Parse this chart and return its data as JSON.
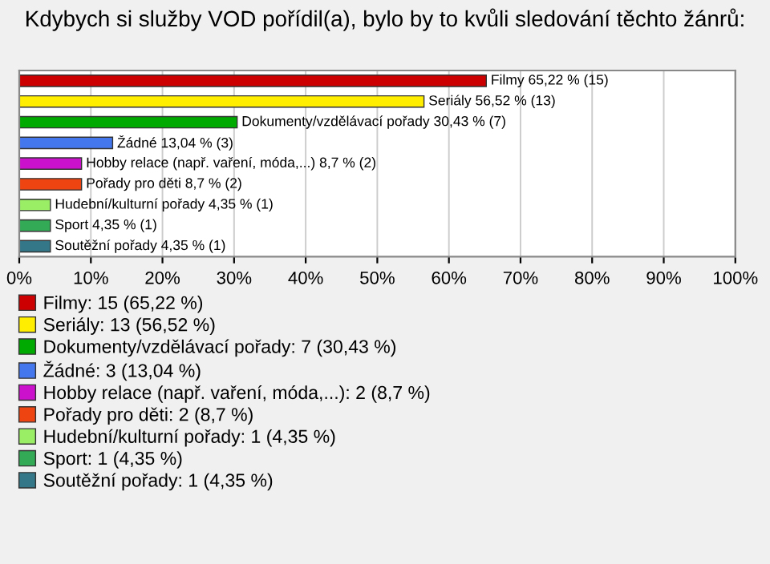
{
  "chart_data": {
    "type": "bar",
    "orientation": "horizontal",
    "title": "Kdybych si služby VOD pořídil(a), bylo by to kvůli sledování těchto žánrů:",
    "categories": [
      null,
      null,
      null,
      null,
      null,
      null,
      null,
      null,
      null
    ],
    "series": [
      {
        "name": "Filmy: 15 (65,22 %)",
        "color": "#cc0000",
        "values": [
          65.22,
          null,
          null,
          null,
          null,
          null,
          null,
          null,
          null
        ],
        "value_labels": [
          "Filmy 65,22 % (15)",
          null,
          null,
          null,
          null,
          null,
          null,
          null,
          null
        ]
      },
      {
        "name": "Seriály: 13 (56,52 %)",
        "color": "#ffee00",
        "values": [
          null,
          56.52,
          null,
          null,
          null,
          null,
          null,
          null,
          null
        ],
        "value_labels": [
          null,
          "Seriály 56,52 % (13)",
          null,
          null,
          null,
          null,
          null,
          null,
          null
        ]
      },
      {
        "name": "Dokumenty/vzdělávací pořady: 7 (30,43 %)",
        "color": "#00aa00",
        "values": [
          null,
          null,
          30.43,
          null,
          null,
          null,
          null,
          null,
          null
        ],
        "value_labels": [
          null,
          null,
          "Dokumenty/vzdělávací pořady 30,43 % (7)",
          null,
          null,
          null,
          null,
          null,
          null
        ]
      },
      {
        "name": "Žádné: 3 (13,04 %)",
        "color": "#4477ee",
        "values": [
          null,
          null,
          null,
          13.04,
          null,
          null,
          null,
          null,
          null
        ],
        "value_labels": [
          null,
          null,
          null,
          "Žádné 13,04 % (3)",
          null,
          null,
          null,
          null,
          null
        ]
      },
      {
        "name": "Hobby relace (např. vaření, móda,...): 2 (8,7 %)",
        "color": "#cc11cc",
        "values": [
          null,
          null,
          null,
          null,
          8.7,
          null,
          null,
          null,
          null
        ],
        "value_labels": [
          null,
          null,
          null,
          null,
          "Hobby relace (např. vaření, móda,...) 8,7 % (2)",
          null,
          null,
          null,
          null
        ]
      },
      {
        "name": "Pořady pro děti: 2 (8,7 %)",
        "color": "#ee4411",
        "values": [
          null,
          null,
          null,
          null,
          null,
          8.7,
          null,
          null,
          null
        ],
        "value_labels": [
          null,
          null,
          null,
          null,
          null,
          "Pořady pro děti 8,7 % (2)",
          null,
          null,
          null
        ]
      },
      {
        "name": "Hudební/kulturní pořady: 1 (4,35 %)",
        "color": "#99ee66",
        "values": [
          null,
          null,
          null,
          null,
          null,
          null,
          4.35,
          null,
          null
        ],
        "value_labels": [
          null,
          null,
          null,
          null,
          null,
          null,
          "Hudební/kulturní pořady 4,35 % (1)",
          null,
          null
        ]
      },
      {
        "name": "Sport: 1 (4,35 %)",
        "color": "#33aa55",
        "values": [
          null,
          null,
          null,
          null,
          null,
          null,
          null,
          4.35,
          null
        ],
        "value_labels": [
          null,
          null,
          null,
          null,
          null,
          null,
          null,
          "Sport 4,35 % (1)",
          null
        ]
      },
      {
        "name": "Soutěžní pořady: 1 (4,35 %)",
        "color": "#337788",
        "values": [
          null,
          null,
          null,
          null,
          null,
          null,
          null,
          null,
          4.35
        ],
        "value_labels": [
          null,
          null,
          null,
          null,
          null,
          null,
          null,
          null,
          "Soutěžní pořady 4,35 % (1)"
        ]
      }
    ],
    "xlim": [
      0,
      100
    ],
    "xticks": [
      {
        "value": 0,
        "label": "0%"
      },
      {
        "value": 10,
        "label": "10%"
      },
      {
        "value": 20,
        "label": "20%"
      },
      {
        "value": 30,
        "label": "30%"
      },
      {
        "value": 40,
        "label": "40%"
      },
      {
        "value": 50,
        "label": "50%"
      },
      {
        "value": 60,
        "label": "60%"
      },
      {
        "value": 70,
        "label": "70%"
      },
      {
        "value": 80,
        "label": "80%"
      },
      {
        "value": 90,
        "label": "90%"
      },
      {
        "value": 100,
        "label": "100%"
      }
    ],
    "grid": "x",
    "legend": "bottom",
    "tick_labels": "x"
  }
}
